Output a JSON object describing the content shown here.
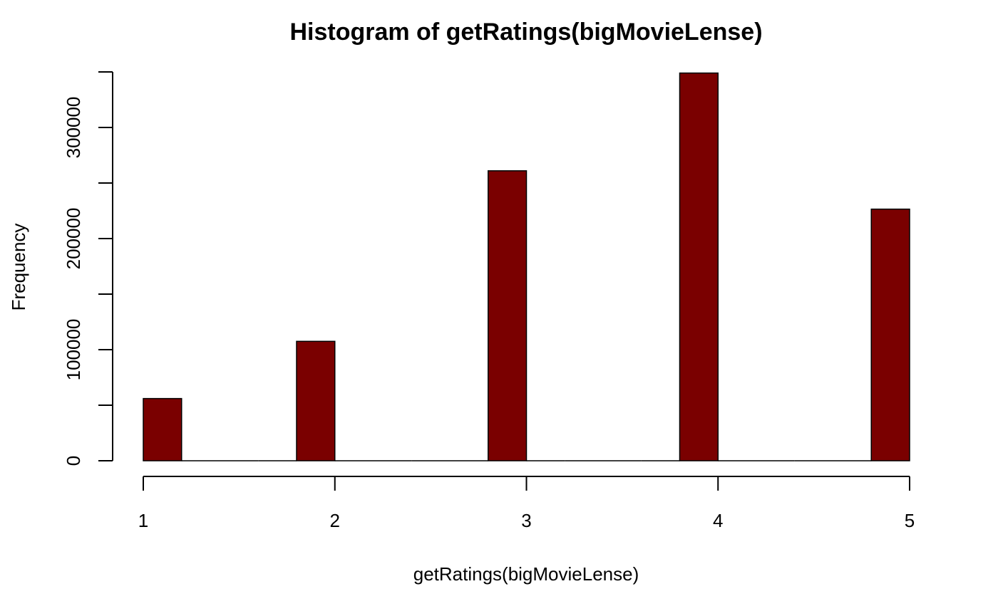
{
  "chart_data": {
    "type": "bar",
    "title": "Histogram of getRatings(bigMovieLense)",
    "xlabel": "getRatings(bigMovieLense)",
    "ylabel": "Frequency",
    "xlim": [
      1,
      5
    ],
    "ylim": [
      0,
      350000
    ],
    "bin_width": 0.2,
    "bins": [
      {
        "x0": 1.0,
        "x1": 1.2,
        "value": 56000
      },
      {
        "x0": 1.2,
        "x1": 1.4,
        "value": 0
      },
      {
        "x0": 1.4,
        "x1": 1.6,
        "value": 0
      },
      {
        "x0": 1.6,
        "x1": 1.8,
        "value": 0
      },
      {
        "x0": 1.8,
        "x1": 2.0,
        "value": 107500
      },
      {
        "x0": 2.0,
        "x1": 2.2,
        "value": 0
      },
      {
        "x0": 2.2,
        "x1": 2.4,
        "value": 0
      },
      {
        "x0": 2.4,
        "x1": 2.6,
        "value": 0
      },
      {
        "x0": 2.6,
        "x1": 2.8,
        "value": 0
      },
      {
        "x0": 2.8,
        "x1": 3.0,
        "value": 261000
      },
      {
        "x0": 3.0,
        "x1": 3.2,
        "value": 0
      },
      {
        "x0": 3.2,
        "x1": 3.4,
        "value": 0
      },
      {
        "x0": 3.4,
        "x1": 3.6,
        "value": 0
      },
      {
        "x0": 3.6,
        "x1": 3.8,
        "value": 0
      },
      {
        "x0": 3.8,
        "x1": 4.0,
        "value": 349000
      },
      {
        "x0": 4.0,
        "x1": 4.2,
        "value": 0
      },
      {
        "x0": 4.2,
        "x1": 4.4,
        "value": 0
      },
      {
        "x0": 4.4,
        "x1": 4.6,
        "value": 0
      },
      {
        "x0": 4.6,
        "x1": 4.8,
        "value": 0
      },
      {
        "x0": 4.8,
        "x1": 5.0,
        "value": 226500
      }
    ],
    "x_ticks": [
      1,
      2,
      3,
      4,
      5
    ],
    "x_tick_labels": [
      "1",
      "2",
      "3",
      "4",
      "5"
    ],
    "y_ticks": [
      0,
      50000,
      100000,
      150000,
      200000,
      250000,
      300000,
      350000
    ],
    "y_tick_labels": [
      "0",
      "",
      "100000",
      "",
      "200000",
      "",
      "300000",
      ""
    ],
    "bar_color": "#7a0000",
    "grid": false,
    "legend": "none"
  }
}
